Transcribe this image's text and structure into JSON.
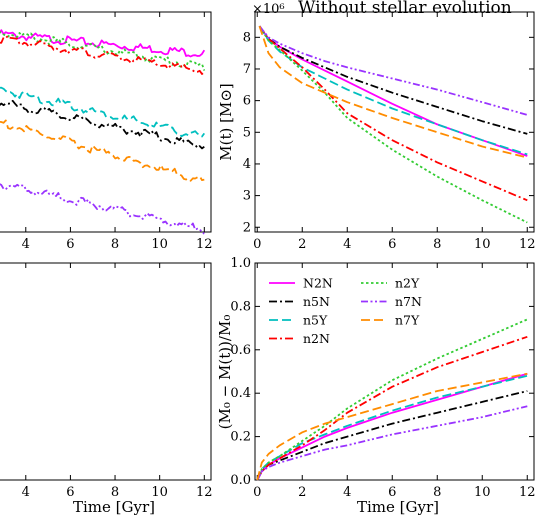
{
  "chart_data": [
    {
      "type": "line",
      "panel": "top-left (partially visible)",
      "x_ticks": [
        "4",
        "6",
        "8",
        "10",
        "12"
      ],
      "xlim": [
        2.8,
        12.3
      ],
      "series": [
        {
          "key": "N2N",
          "color": "#ff00ff",
          "dash": "solid",
          "x": [
            2.8,
            12
          ],
          "y": [
            0.91,
            0.82
          ]
        },
        {
          "key": "n2Y",
          "color": "#33cc33",
          "dash": "dotted",
          "x": [
            2.8,
            12
          ],
          "y": [
            0.92,
            0.76
          ]
        },
        {
          "key": "n2N",
          "color": "#ff0000",
          "dash": "dashdot",
          "x": [
            2.8,
            12
          ],
          "y": [
            0.89,
            0.74
          ]
        },
        {
          "key": "n5Y",
          "color": "#00bfbf",
          "dash": "dashed",
          "x": [
            2.8,
            12
          ],
          "y": [
            0.66,
            0.44
          ]
        },
        {
          "key": "n5N",
          "color": "#000000",
          "dash": "dashdot",
          "x": [
            2.8,
            12
          ],
          "y": [
            0.6,
            0.4
          ]
        },
        {
          "key": "n7Y",
          "color": "#ff8c00",
          "dash": "dashed",
          "x": [
            2.8,
            12
          ],
          "y": [
            0.51,
            0.24
          ]
        },
        {
          "key": "n7N",
          "color": "#9933ff",
          "dash": "dashdotdot",
          "x": [
            2.8,
            12
          ],
          "y": [
            0.23,
            0.02
          ]
        }
      ]
    },
    {
      "type": "line",
      "panel": "top-right",
      "title": "Without stellar evolution",
      "multiplier": "×10⁶",
      "ylabel": "M(t) [M⊙]",
      "xlim": [
        -0.1,
        12.3
      ],
      "ylim": [
        1.85,
        8.8
      ],
      "x_ticks": [
        "0",
        "2",
        "4",
        "6",
        "8",
        "10",
        "12"
      ],
      "y_ticks": [
        "2",
        "3",
        "4",
        "5",
        "6",
        "7",
        "8"
      ],
      "series": [
        {
          "key": "N2N",
          "color": "#ff00ff",
          "dash": "solid",
          "x": [
            0.1,
            0.5,
            1,
            2,
            3,
            4,
            6,
            8,
            10,
            12
          ],
          "y": [
            8.35,
            7.95,
            7.7,
            7.3,
            6.95,
            6.6,
            5.9,
            5.25,
            4.75,
            4.25
          ]
        },
        {
          "key": "n5N",
          "color": "#000000",
          "dash": "dashdot",
          "x": [
            0.1,
            0.5,
            1,
            2,
            3,
            4,
            6,
            8,
            10,
            12
          ],
          "y": [
            8.35,
            7.95,
            7.7,
            7.35,
            7.05,
            6.75,
            6.25,
            5.8,
            5.35,
            4.95
          ]
        },
        {
          "key": "n5Y",
          "color": "#00bfbf",
          "dash": "dashed",
          "x": [
            0.1,
            0.5,
            1,
            2,
            3,
            4,
            6,
            8,
            10,
            12
          ],
          "y": [
            8.35,
            7.9,
            7.55,
            7.05,
            6.7,
            6.35,
            5.75,
            5.25,
            4.75,
            4.3
          ]
        },
        {
          "key": "n2N",
          "color": "#ff0000",
          "dash": "dashdot",
          "x": [
            0.1,
            0.5,
            1,
            2,
            3,
            4,
            6,
            8,
            10,
            12
          ],
          "y": [
            8.35,
            7.95,
            7.65,
            7.05,
            6.35,
            5.6,
            4.75,
            4.05,
            3.45,
            2.85
          ]
        },
        {
          "key": "n2Y",
          "color": "#33cc33",
          "dash": "dotted",
          "x": [
            0.1,
            0.5,
            1,
            2,
            3,
            4,
            6,
            8,
            10,
            12
          ],
          "y": [
            8.35,
            7.9,
            7.6,
            6.95,
            6.25,
            5.45,
            4.45,
            3.6,
            2.85,
            2.15
          ]
        },
        {
          "key": "n7N",
          "color": "#9933ff",
          "dash": "dashdotdot",
          "x": [
            0.1,
            0.5,
            1,
            2,
            3,
            4,
            6,
            8,
            10,
            12
          ],
          "y": [
            8.35,
            8.0,
            7.8,
            7.5,
            7.25,
            7.05,
            6.7,
            6.35,
            5.95,
            5.55
          ]
        },
        {
          "key": "n7Y",
          "color": "#ff8c00",
          "dash": "dashed",
          "x": [
            0.1,
            0.5,
            1,
            2,
            3,
            4,
            6,
            8,
            10,
            12
          ],
          "y": [
            8.35,
            7.5,
            7.05,
            6.55,
            6.25,
            5.95,
            5.45,
            5.0,
            4.55,
            4.2
          ]
        }
      ]
    },
    {
      "type": "line",
      "panel": "bottom-left (partially visible)",
      "xlabel": "Time [Gyr]",
      "x_ticks": [
        "4",
        "6",
        "8",
        "10",
        "12"
      ],
      "xlim": [
        2.8,
        12.3
      ],
      "series": []
    },
    {
      "type": "line",
      "panel": "bottom-right",
      "xlabel": "Time [Gyr]",
      "ylabel": "(M₀ − M(t))/M₀",
      "xlim": [
        -0.1,
        12.3
      ],
      "ylim": [
        0,
        1.0
      ],
      "x_ticks": [
        "0",
        "2",
        "4",
        "6",
        "8",
        "10",
        "12"
      ],
      "y_ticks": [
        "0.0",
        "0.2",
        "0.4",
        "0.6",
        "0.8",
        "1.0"
      ],
      "legend_position": "top-left",
      "legend": {
        "col1": [
          {
            "key": "N2N",
            "label": "N2N"
          },
          {
            "key": "n5N",
            "label": "n5N"
          },
          {
            "key": "n5Y",
            "label": "n5Y"
          },
          {
            "key": "n2N",
            "label": "n2N"
          }
        ],
        "col2": [
          {
            "key": "n2Y",
            "label": "n2Y"
          },
          {
            "key": "n7N",
            "label": "n7N"
          },
          {
            "key": "n7Y",
            "label": "n7Y"
          }
        ]
      },
      "series": [
        {
          "key": "N2N",
          "color": "#ff00ff",
          "dash": "solid",
          "x": [
            0,
            0.2,
            0.5,
            1,
            2,
            3,
            4,
            6,
            8,
            10,
            12
          ],
          "y": [
            0,
            0.04,
            0.07,
            0.1,
            0.15,
            0.2,
            0.24,
            0.31,
            0.37,
            0.43,
            0.49
          ]
        },
        {
          "key": "n5N",
          "color": "#000000",
          "dash": "dashdot",
          "x": [
            0,
            0.2,
            0.5,
            1,
            2,
            3,
            4,
            6,
            8,
            10,
            12
          ],
          "y": [
            0,
            0.04,
            0.07,
            0.09,
            0.13,
            0.17,
            0.2,
            0.26,
            0.31,
            0.36,
            0.41
          ]
        },
        {
          "key": "n5Y",
          "color": "#00bfbf",
          "dash": "dashed",
          "x": [
            0,
            0.2,
            0.5,
            1,
            2,
            3,
            4,
            6,
            8,
            10,
            12
          ],
          "y": [
            0,
            0.05,
            0.08,
            0.11,
            0.17,
            0.21,
            0.25,
            0.32,
            0.38,
            0.43,
            0.48
          ]
        },
        {
          "key": "n2N",
          "color": "#ff0000",
          "dash": "dashdot",
          "x": [
            0,
            0.2,
            0.5,
            1,
            2,
            3,
            4,
            6,
            8,
            10,
            12
          ],
          "y": [
            0,
            0.04,
            0.07,
            0.1,
            0.16,
            0.23,
            0.31,
            0.43,
            0.52,
            0.59,
            0.66
          ]
        },
        {
          "key": "n2Y",
          "color": "#33cc33",
          "dash": "dotted",
          "x": [
            0,
            0.2,
            0.5,
            1,
            2,
            3,
            4,
            6,
            8,
            10,
            12
          ],
          "y": [
            0,
            0.05,
            0.08,
            0.11,
            0.18,
            0.25,
            0.33,
            0.46,
            0.56,
            0.65,
            0.74
          ]
        },
        {
          "key": "n7N",
          "color": "#9933ff",
          "dash": "dashdotdot",
          "x": [
            0,
            0.2,
            0.5,
            1,
            2,
            3,
            4,
            6,
            8,
            10,
            12
          ],
          "y": [
            0,
            0.04,
            0.06,
            0.08,
            0.11,
            0.14,
            0.16,
            0.21,
            0.25,
            0.29,
            0.34
          ]
        },
        {
          "key": "n7Y",
          "color": "#ff8c00",
          "dash": "dashed",
          "x": [
            0,
            0.2,
            0.5,
            1,
            2,
            3,
            4,
            6,
            8,
            10,
            12
          ],
          "y": [
            0,
            0.08,
            0.12,
            0.16,
            0.22,
            0.26,
            0.29,
            0.35,
            0.41,
            0.45,
            0.49
          ]
        }
      ]
    }
  ]
}
